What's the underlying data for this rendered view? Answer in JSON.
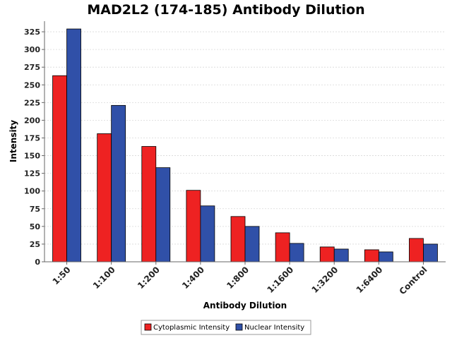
{
  "chart_data": {
    "type": "bar",
    "title": "MAD2L2 (174-185) Antibody Dilution",
    "xlabel": "Antibody Dilution",
    "ylabel": "Intensity",
    "categories": [
      "1:50",
      "1:100",
      "1:200",
      "1:400",
      "1:800",
      "1:1600",
      "1:3200",
      "1:6400",
      "Control"
    ],
    "series": [
      {
        "name": "Cytoplasmic Intensity",
        "color": "#ee2222",
        "values": [
          263,
          181,
          163,
          101,
          64,
          41,
          21,
          17,
          33
        ]
      },
      {
        "name": "Nuclear Intensity",
        "color": "#3050a8",
        "values": [
          329,
          221,
          133,
          79,
          50,
          26,
          18,
          14,
          25
        ]
      }
    ],
    "ylim": [
      0,
      340
    ],
    "yticks": [
      0,
      25,
      50,
      75,
      100,
      125,
      150,
      175,
      200,
      225,
      250,
      275,
      300,
      325
    ],
    "grid": true,
    "legend_position": "bottom"
  }
}
